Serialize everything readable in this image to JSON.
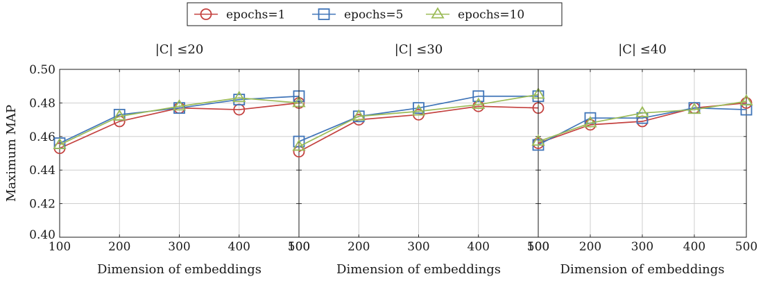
{
  "chart_data": [
    {
      "type": "line",
      "title": "|C| ≤20",
      "xlabel": "Dimension of embeddings",
      "ylabel": "Maximum MAP",
      "x": [
        100,
        200,
        300,
        400,
        500
      ],
      "xticks": [
        "100",
        "200",
        "300",
        "400",
        "500"
      ],
      "ylim": [
        0.4,
        0.5
      ],
      "yticks": [
        "0.40",
        "0.42",
        "0.44",
        "0.46",
        "0.48",
        "0.50"
      ],
      "grid": true,
      "series": [
        {
          "name": "epochs=1",
          "values": [
            0.453,
            0.469,
            0.477,
            0.476,
            0.48
          ]
        },
        {
          "name": "epochs=5",
          "values": [
            0.456,
            0.473,
            0.477,
            0.482,
            0.484
          ]
        },
        {
          "name": "epochs=10",
          "values": [
            0.455,
            0.472,
            0.478,
            0.483,
            0.48
          ]
        }
      ]
    },
    {
      "type": "line",
      "title": "|C| ≤30",
      "xlabel": "Dimension of embeddings",
      "ylabel": "",
      "x": [
        100,
        200,
        300,
        400,
        500
      ],
      "xticks": [
        "100",
        "200",
        "300",
        "400",
        "500"
      ],
      "ylim": [
        0.4,
        0.5
      ],
      "grid": true,
      "series": [
        {
          "name": "epochs=1",
          "values": [
            0.451,
            0.47,
            0.473,
            0.478,
            0.477
          ]
        },
        {
          "name": "epochs=5",
          "values": [
            0.457,
            0.472,
            0.477,
            0.484,
            0.484
          ]
        },
        {
          "name": "epochs=10",
          "values": [
            0.454,
            0.472,
            0.475,
            0.479,
            0.485
          ]
        }
      ]
    },
    {
      "type": "line",
      "title": "|C| ≤40",
      "xlabel": "Dimension of embeddings",
      "ylabel": "",
      "x": [
        100,
        200,
        300,
        400,
        500
      ],
      "xticks": [
        "100",
        "200",
        "300",
        "400",
        "500"
      ],
      "ylim": [
        0.4,
        0.5
      ],
      "grid": true,
      "series": [
        {
          "name": "epochs=1",
          "values": [
            0.456,
            0.467,
            0.469,
            0.477,
            0.48
          ]
        },
        {
          "name": "epochs=5",
          "values": [
            0.455,
            0.471,
            0.471,
            0.477,
            0.476
          ]
        },
        {
          "name": "epochs=10",
          "values": [
            0.457,
            0.468,
            0.474,
            0.476,
            0.481
          ]
        }
      ]
    }
  ],
  "legend": {
    "placement": "top-center",
    "entries": [
      {
        "label": "epochs=1",
        "color": "#c4413f",
        "marker": "circle"
      },
      {
        "label": "epochs=5",
        "color": "#3f74b8",
        "marker": "square"
      },
      {
        "label": "epochs=10",
        "color": "#9bbb57",
        "marker": "triangle"
      }
    ]
  }
}
